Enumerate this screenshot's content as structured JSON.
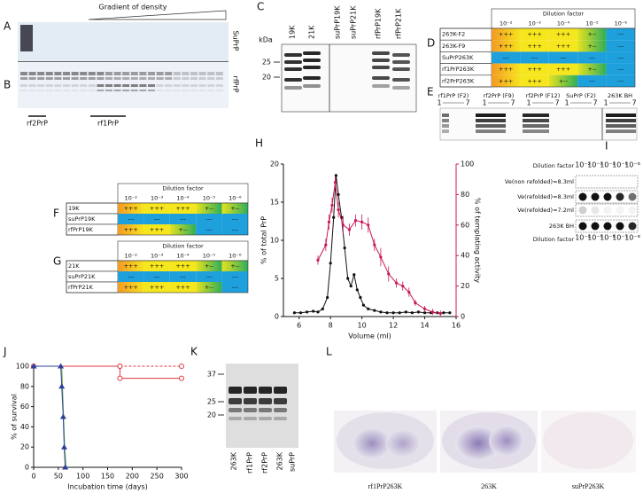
{
  "panel_labels": [
    "A",
    "B",
    "C",
    "D",
    "E",
    "F",
    "G",
    "H",
    "I",
    "J",
    "K",
    "L"
  ],
  "panel_a": {
    "header": "Gradient of density",
    "blot_labels": [
      "SuPrP",
      "rfPrP"
    ],
    "fraction_labels": [
      "rf2PrP",
      "rf1PrP"
    ]
  },
  "panel_c": {
    "unit": "kDa",
    "markers": [
      25,
      20
    ],
    "lanes": [
      "19K",
      "21K",
      "suPrP19K",
      "suPrP21K",
      "rfPrP19K",
      "rfPrP21K"
    ]
  },
  "panel_d": {
    "header": "Dilution factor",
    "columns": [
      "10⁻²",
      "10⁻³",
      "10⁻⁴",
      "10⁻⁵",
      "10⁻⁶"
    ],
    "rows": [
      {
        "label": "263K-F2",
        "cells": [
          "+++",
          "+++",
          "+++",
          "+--",
          "---"
        ]
      },
      {
        "label": "263K-F9",
        "cells": [
          "+++",
          "+++",
          "+++",
          "+--",
          "---"
        ]
      },
      {
        "label": "SuPrP263K",
        "cells": [
          "---",
          "---",
          "---",
          "---",
          "---"
        ]
      },
      {
        "label": "rf1PrP263K",
        "cells": [
          "+++",
          "+++",
          "+++",
          "+--",
          "---"
        ]
      },
      {
        "label": "rf2PrP263K",
        "cells": [
          "+++",
          "+++",
          "+--",
          "---",
          "---"
        ]
      }
    ]
  },
  "panel_e": {
    "lanes": [
      {
        "label": "rf1PrP (F2)",
        "start": 1,
        "end": 7
      },
      {
        "label": "rf2PrP (F9)",
        "start": 1,
        "end": 7
      },
      {
        "label": "rf2PrP (F12)",
        "start": 1,
        "end": 7
      },
      {
        "label": "SuPrP (F2)",
        "start": 1,
        "end": 7
      },
      {
        "label": "263K BH",
        "start": 1,
        "end": 7
      }
    ]
  },
  "panel_f": {
    "header": "Dilution factor",
    "columns": [
      "10⁻²",
      "10⁻³",
      "10⁻⁴",
      "10⁻⁵",
      "10⁻⁶"
    ],
    "rows": [
      {
        "label": "19K",
        "cells": [
          "+++",
          "+++",
          "+++",
          "+--",
          "+--"
        ]
      },
      {
        "label": "suPrP19K",
        "cells": [
          "---",
          "---",
          "---",
          "---",
          "---"
        ]
      },
      {
        "label": "rfPrP19K",
        "cells": [
          "+++",
          "+++",
          "+--",
          "---",
          "---"
        ]
      }
    ]
  },
  "panel_g": {
    "header": "Dilution factor",
    "columns": [
      "10⁻²",
      "10⁻³",
      "10⁻⁴",
      "10⁻⁵",
      "10⁻⁶"
    ],
    "rows": [
      {
        "label": "21K",
        "cells": [
          "+++",
          "+++",
          "+++",
          "+--",
          "+--"
        ]
      },
      {
        "label": "suPrP21K",
        "cells": [
          "---",
          "---",
          "---",
          "---",
          "---"
        ]
      },
      {
        "label": "rfPrP21K",
        "cells": [
          "+++",
          "+++",
          "+++",
          "+--",
          "---"
        ]
      }
    ]
  },
  "panel_i": {
    "header": "Dilution factor",
    "columns": [
      "10⁻²",
      "10⁻³",
      "10⁻⁴",
      "10⁻⁵",
      "10⁻⁶"
    ],
    "rows": [
      "Ve(non refolded)=8.3ml",
      "Ve(refolded)=8.3ml",
      "Ve(refolded)=7.2ml",
      "263K BH"
    ],
    "footer": "Dilution factor",
    "footer_columns": [
      "10⁻⁴",
      "10⁻⁵",
      "10⁻⁶",
      "10⁻⁷",
      "10⁻⁸"
    ]
  },
  "panel_k": {
    "markers": [
      37,
      25,
      20
    ],
    "lanes": [
      "263K",
      "rf1PrP",
      "rf2PrP",
      "263K",
      "suPrP"
    ]
  },
  "panel_l": {
    "labels": [
      "rf1PrP263K",
      "263K",
      "suPrP263K"
    ]
  },
  "chart_data": [
    {
      "type": "line",
      "xlabel": "Volume (ml)",
      "ylabel": "% of total PrP",
      "y2label": "% of templating activity",
      "xlim": [
        5,
        16
      ],
      "xticks": [
        6,
        8,
        10,
        12,
        14,
        16
      ],
      "ylim": [
        0,
        20
      ],
      "yticks": [
        0,
        5,
        10,
        15,
        20
      ],
      "y2lim": [
        0,
        100
      ],
      "y2ticks": [
        0,
        20,
        40,
        60,
        80,
        100
      ],
      "series": [
        {
          "color": "#111111",
          "marker": "circle",
          "x": [
            5.7,
            6.1,
            6.5,
            6.9,
            7.2,
            7.5,
            7.8,
            8.0,
            8.2,
            8.35,
            8.5,
            8.7,
            8.9,
            9.1,
            9.3,
            9.5,
            9.7,
            9.9,
            10.1,
            10.4,
            10.8,
            11.2,
            11.6,
            12.0,
            12.4,
            12.8,
            13.2,
            13.6,
            14.0,
            14.4,
            14.8,
            15.2,
            15.6
          ],
          "values": [
            0.5,
            0.5,
            0.6,
            0.7,
            0.6,
            1.0,
            2.5,
            7,
            13,
            18.5,
            16,
            13,
            9,
            5,
            4,
            5.5,
            3.5,
            2.5,
            1.5,
            1.0,
            0.8,
            0.6,
            0.5,
            0.5,
            0.5,
            0.6,
            0.5,
            0.6,
            0.5,
            0.5,
            0.5,
            0.5,
            0.5
          ]
        },
        {
          "color": "#c8185a",
          "marker": "circle",
          "axis": "y2",
          "x": [
            7.2,
            7.7,
            7.9,
            8.1,
            8.3,
            8.5,
            8.8,
            9.2,
            9.6,
            10.0,
            10.4,
            10.8,
            11.2,
            11.7,
            12.2,
            12.6,
            13.0,
            13.4,
            14.0,
            14.5,
            15.0
          ],
          "values": [
            37,
            47,
            62,
            73,
            88,
            70,
            60,
            57,
            63,
            62,
            60,
            47,
            39,
            28,
            22,
            20,
            16,
            9,
            5,
            3,
            2
          ],
          "errors": [
            3,
            4,
            5,
            5,
            4,
            5,
            6,
            4,
            4,
            5,
            5,
            4,
            6,
            5,
            3,
            3,
            3,
            2,
            2,
            2,
            2
          ]
        }
      ]
    },
    {
      "type": "line",
      "xlabel": "Incubation time (days)",
      "ylabel": "% of survival",
      "xlim": [
        0,
        300
      ],
      "xticks": [
        0,
        50,
        100,
        150,
        200,
        250,
        300
      ],
      "ylim": [
        0,
        100
      ],
      "yticks": [
        0,
        20,
        40,
        60,
        80,
        100
      ],
      "series": [
        {
          "color": "#e0393e",
          "marker": "open-circle",
          "x": [
            0,
            175,
            175,
            300
          ],
          "values": [
            100,
            100,
            88,
            88
          ]
        },
        {
          "color": "#e0393e",
          "marker": "open-circle",
          "dash": true,
          "x": [
            175,
            300
          ],
          "values": [
            100,
            100
          ]
        },
        {
          "color": "#7ab648",
          "x": [
            0,
            57,
            60,
            63,
            66
          ],
          "values": [
            100,
            100,
            60,
            20,
            0
          ]
        },
        {
          "color": "#2b3f9e",
          "marker": "triangle",
          "x": [
            0,
            55,
            57,
            60,
            62,
            64
          ],
          "values": [
            100,
            100,
            80,
            50,
            20,
            0
          ]
        }
      ]
    }
  ]
}
